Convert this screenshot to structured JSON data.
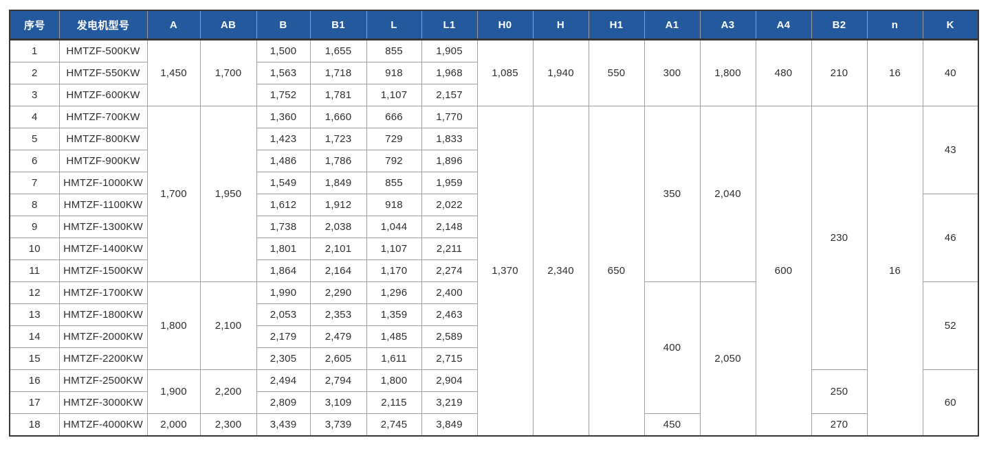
{
  "colors": {
    "header_bg": "#24599e",
    "header_text": "#ffffff",
    "grid_line": "#9aa0a6",
    "frame": "#363636",
    "body_text": "#2e2e2e"
  },
  "table": {
    "columns": [
      {
        "id": "serial",
        "label": "序号"
      },
      {
        "id": "model",
        "label": "发电机型号"
      },
      {
        "id": "A",
        "label": "A"
      },
      {
        "id": "AB",
        "label": "AB"
      },
      {
        "id": "B",
        "label": "B"
      },
      {
        "id": "B1",
        "label": "B1"
      },
      {
        "id": "L",
        "label": "L"
      },
      {
        "id": "L1",
        "label": "L1"
      },
      {
        "id": "H0",
        "label": "H0"
      },
      {
        "id": "H",
        "label": "H"
      },
      {
        "id": "H1",
        "label": "H1"
      },
      {
        "id": "A1",
        "label": "A1"
      },
      {
        "id": "A3",
        "label": "A3"
      },
      {
        "id": "A4",
        "label": "A4"
      },
      {
        "id": "B2",
        "label": "B2"
      },
      {
        "id": "n",
        "label": "n"
      },
      {
        "id": "K",
        "label": "K"
      }
    ],
    "rows": [
      [
        "1",
        "HMTZF-500KW",
        {
          "v": "1,450",
          "rs": 3
        },
        {
          "v": "1,700",
          "rs": 3
        },
        "1,500",
        "1,655",
        "855",
        "1,905",
        {
          "v": "1,085",
          "rs": 3
        },
        {
          "v": "1,940",
          "rs": 3
        },
        {
          "v": "550",
          "rs": 3
        },
        {
          "v": "300",
          "rs": 3
        },
        {
          "v": "1,800",
          "rs": 3
        },
        {
          "v": "480",
          "rs": 3
        },
        {
          "v": "210",
          "rs": 3
        },
        {
          "v": "16",
          "rs": 3
        },
        {
          "v": "40",
          "rs": 3
        }
      ],
      [
        "2",
        "HMTZF-550KW",
        "1,563",
        "1,718",
        "918",
        "1,968"
      ],
      [
        "3",
        "HMTZF-600KW",
        "1,752",
        "1,781",
        "1,107",
        "2,157"
      ],
      [
        "4",
        "HMTZF-700KW",
        {
          "v": "1,700",
          "rs": 8
        },
        {
          "v": "1,950",
          "rs": 8
        },
        "1,360",
        "1,660",
        "666",
        "1,770",
        {
          "v": "1,370",
          "rs": 15
        },
        {
          "v": "2,340",
          "rs": 15
        },
        {
          "v": "650",
          "rs": 15
        },
        {
          "v": "350",
          "rs": 8
        },
        {
          "v": "2,040",
          "rs": 8
        },
        {
          "v": "600",
          "rs": 15
        },
        {
          "v": "230",
          "rs": 12
        },
        {
          "v": "16",
          "rs": 15
        },
        {
          "v": "43",
          "rs": 4
        }
      ],
      [
        "5",
        "HMTZF-800KW",
        "1,423",
        "1,723",
        "729",
        "1,833"
      ],
      [
        "6",
        "HMTZF-900KW",
        "1,486",
        "1,786",
        "792",
        "1,896"
      ],
      [
        "7",
        "HMTZF-1000KW",
        "1,549",
        "1,849",
        "855",
        "1,959"
      ],
      [
        "8",
        "HMTZF-1100KW",
        "1,612",
        "1,912",
        "918",
        "2,022",
        {
          "v": "46",
          "rs": 4
        }
      ],
      [
        "9",
        "HMTZF-1300KW",
        "1,738",
        "2,038",
        "1,044",
        "2,148"
      ],
      [
        "10",
        "HMTZF-1400KW",
        "1,801",
        "2,101",
        "1,107",
        "2,211"
      ],
      [
        "11",
        "HMTZF-1500KW",
        "1,864",
        "2,164",
        "1,170",
        "2,274"
      ],
      [
        "12",
        "HMTZF-1700KW",
        {
          "v": "1,800",
          "rs": 4
        },
        {
          "v": "2,100",
          "rs": 4
        },
        "1,990",
        "2,290",
        "1,296",
        "2,400",
        {
          "v": "400",
          "rs": 6
        },
        {
          "v": "2,050",
          "rs": 7
        },
        {
          "v": "52",
          "rs": 4
        }
      ],
      [
        "13",
        "HMTZF-1800KW",
        "2,053",
        "2,353",
        "1,359",
        "2,463"
      ],
      [
        "14",
        "HMTZF-2000KW",
        "2,179",
        "2,479",
        "1,485",
        "2,589"
      ],
      [
        "15",
        "HMTZF-2200KW",
        "2,305",
        "2,605",
        "1,611",
        "2,715"
      ],
      [
        "16",
        "HMTZF-2500KW",
        {
          "v": "1,900",
          "rs": 2
        },
        {
          "v": "2,200",
          "rs": 2
        },
        "2,494",
        "2,794",
        "1,800",
        "2,904",
        {
          "v": "250",
          "rs": 2
        },
        {
          "v": "60",
          "rs": 3
        }
      ],
      [
        "17",
        "HMTZF-3000KW",
        "2,809",
        "3,109",
        "2,115",
        "3,219"
      ],
      [
        "18",
        "HMTZF-4000KW",
        "2,000",
        "2,300",
        "3,439",
        "3,739",
        "2,745",
        "3,849",
        "450",
        "270"
      ]
    ]
  }
}
